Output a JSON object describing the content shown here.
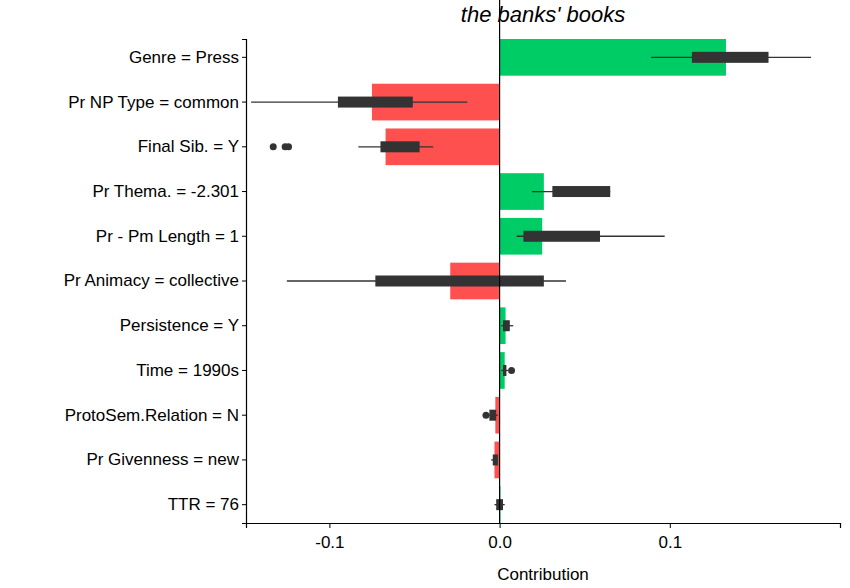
{
  "chart_data": {
    "type": "bar",
    "orientation": "horizontal",
    "title": "the banks' books",
    "x_label": "Contribution",
    "categories": [
      "Genre = Press",
      "Pr NP Type = common",
      "Final Sib. = Y",
      "Pr Thema. = -2.301",
      "Pr - Pm Length = 1",
      "Pr Animacy = collective",
      "Persistence = Y",
      "Time = 1990s",
      "ProtoSem.Relation = N",
      "Pr Givenness = new",
      "TTR = 76"
    ],
    "values": [
      0.133,
      -0.075,
      -0.067,
      0.026,
      0.025,
      -0.029,
      0.0035,
      0.003,
      -0.0025,
      -0.003,
      0.0005
    ],
    "colors": [
      "#00cc66",
      "#ff5050",
      "#ff5050",
      "#00cc66",
      "#00cc66",
      "#ff5050",
      "#00cc66",
      "#00cc66",
      "#ff5050",
      "#ff5050",
      "#00cc66"
    ],
    "box_q1": [
      0.113,
      -0.095,
      -0.07,
      0.031,
      0.014,
      -0.073,
      0.002,
      0.002,
      -0.006,
      -0.004,
      -0.002
    ],
    "box_q3": [
      0.158,
      -0.051,
      -0.047,
      0.065,
      0.059,
      0.026,
      0.006,
      0.004,
      -0.002,
      -0.001,
      0.002
    ],
    "whisker_low": [
      0.089,
      -0.146,
      -0.083,
      0.019,
      0.01,
      -0.125,
      0.001,
      0.001,
      -0.007,
      -0.005,
      -0.003
    ],
    "whisker_high": [
      0.183,
      -0.019,
      -0.039,
      0.065,
      0.097,
      0.039,
      0.008,
      0.005,
      -0.001,
      -0.001,
      0.003
    ],
    "outliers": [
      [],
      [],
      [
        -0.133,
        -0.126,
        -0.124
      ],
      [],
      [],
      [],
      [],
      [
        0.007
      ],
      [
        -0.008
      ],
      [],
      []
    ],
    "xlim": [
      -0.149,
      0.2
    ],
    "xticks": [
      -0.1,
      {
        "value": 0,
        "label": "0.0"
      },
      0.1
    ]
  }
}
